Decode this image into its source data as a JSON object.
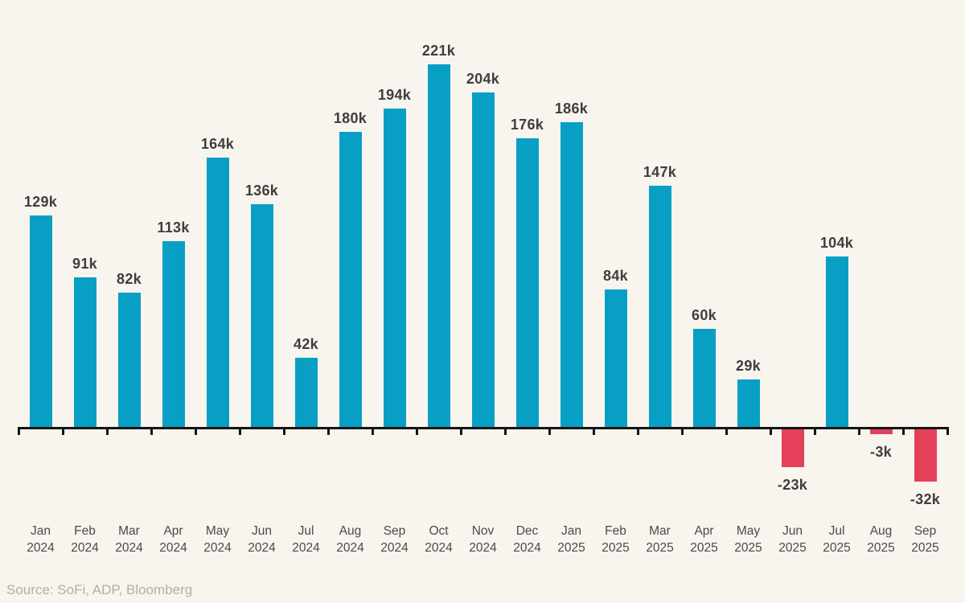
{
  "chart_data": {
    "type": "bar",
    "title": "",
    "description": "Monthly employment change in thousands, Jan 2024 through Sep 2025",
    "unit": "k",
    "months": [
      "Jan",
      "Feb",
      "Mar",
      "Apr",
      "May",
      "Jun",
      "Jul",
      "Aug",
      "Sep",
      "Oct",
      "Nov",
      "Dec",
      "Jan",
      "Feb",
      "Mar",
      "Apr",
      "May",
      "Jun",
      "Jul",
      "Aug",
      "Sep"
    ],
    "years": [
      "2024",
      "2024",
      "2024",
      "2024",
      "2024",
      "2024",
      "2024",
      "2024",
      "2024",
      "2024",
      "2024",
      "2024",
      "2025",
      "2025",
      "2025",
      "2025",
      "2025",
      "2025",
      "2025",
      "2025",
      "2025"
    ],
    "values": [
      129,
      91,
      82,
      113,
      164,
      136,
      42,
      180,
      194,
      221,
      204,
      176,
      186,
      84,
      147,
      60,
      29,
      -23,
      104,
      -3,
      -32
    ],
    "value_labels": [
      "129k",
      "91k",
      "82k",
      "113k",
      "164k",
      "136k",
      "42k",
      "180k",
      "194k",
      "221k",
      "204k",
      "176k",
      "186k",
      "84k",
      "147k",
      "60k",
      "29k",
      "-23k",
      "104k",
      "-3k",
      "-32k"
    ],
    "ylim": [
      -40,
      230
    ],
    "grid": false,
    "legend": null,
    "colors": {
      "positive_bar": "#089FC5",
      "negative_bar": "#E4405A",
      "axis": "#141414",
      "value_label": "#3E3E3E",
      "month_label": "#4A4A4A",
      "background": "#F8F5EF",
      "source_text": "#B3ADA4"
    },
    "source": "Source: SoFi, ADP, Bloomberg"
  }
}
